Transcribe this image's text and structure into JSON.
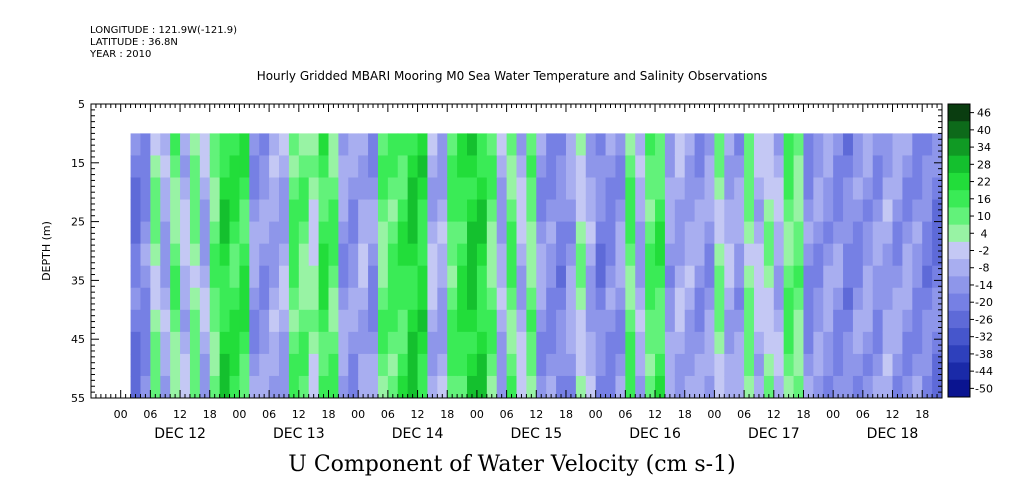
{
  "metadata": {
    "longitude": "LONGITUDE : 121.9W(-121.9)",
    "latitude": "LATITUDE : 36.8N",
    "year": "YEAR : 2010"
  },
  "chart_data": {
    "type": "heatmap",
    "title": "Hourly Gridded MBARI Mooring M0 Sea Water Temperature and Salinity Observations",
    "xlabel": "U Component of Water Velocity (cm s-1)",
    "ylabel": "DEPTH (m)",
    "y_ticks": [
      5,
      15,
      25,
      35,
      45,
      55
    ],
    "y_range": [
      55,
      5
    ],
    "x_hour_labels": [
      "00",
      "06",
      "12",
      "18"
    ],
    "x_day_labels": [
      "DEC 12",
      "DEC 13",
      "DEC 14",
      "DEC 15",
      "DEC 16",
      "DEC 17",
      "DEC 18"
    ],
    "data_depth_range": [
      10,
      55
    ],
    "data_time_start_hour": 2,
    "colorbar": {
      "labels": [
        "46",
        "40",
        "34",
        "28",
        "22",
        "16",
        "10",
        "4",
        "-2",
        "-8",
        "-14",
        "-20",
        "-26",
        "-32",
        "-38",
        "-44",
        "-50"
      ],
      "range": [
        -50,
        50
      ],
      "colors": [
        "#0a3d10",
        "#0d6a1a",
        "#109a24",
        "#14c02e",
        "#22dd3a",
        "#3aeb56",
        "#62f27a",
        "#98f3a4",
        "#c4c8f4",
        "#a8aef0",
        "#8e96ea",
        "#7680e4",
        "#5e6ad8",
        "#4656cc",
        "#2e40bc",
        "#1a2aa8",
        "#0a1490"
      ]
    },
    "u_velocity_by_time": [
      {
        "day": 12,
        "hours": [
          2,
          4,
          6,
          8,
          10,
          12,
          14,
          16,
          18,
          20,
          22
        ],
        "u": [
          -20,
          -14,
          6,
          -8,
          10,
          -4,
          8,
          -6,
          12,
          22,
          18
        ]
      },
      {
        "day": 13,
        "hours": [
          0,
          2,
          4,
          6,
          8,
          10,
          12,
          14,
          16,
          18,
          20,
          22
        ],
        "u": [
          20,
          -10,
          -12,
          -8,
          -6,
          14,
          10,
          4,
          18,
          12,
          -10,
          -12
        ]
      },
      {
        "day": 14,
        "hours": [
          0,
          2,
          4,
          6,
          8,
          10,
          12,
          14,
          16,
          18,
          20,
          22
        ],
        "u": [
          -6,
          -12,
          12,
          14,
          18,
          24,
          22,
          -4,
          -8,
          14,
          20,
          26
        ]
      },
      {
        "day": 15,
        "hours": [
          0,
          2,
          4,
          6,
          8,
          10,
          12,
          14,
          16,
          18,
          20,
          22
        ],
        "u": [
          24,
          10,
          -8,
          12,
          -6,
          10,
          -10,
          -14,
          -16,
          -10,
          6,
          -8
        ]
      },
      {
        "day": 16,
        "hours": [
          0,
          2,
          4,
          6,
          8,
          10,
          12,
          14,
          16,
          18,
          20,
          22
        ],
        "u": [
          -16,
          -14,
          -12,
          12,
          -8,
          14,
          16,
          -10,
          -6,
          -8,
          -10,
          -12
        ]
      },
      {
        "day": 17,
        "hours": [
          0,
          2,
          4,
          6,
          8,
          10,
          12,
          14,
          16,
          18,
          20,
          22
        ],
        "u": [
          8,
          -6,
          -10,
          8,
          -4,
          4,
          -6,
          12,
          10,
          -14,
          -12,
          -10
        ]
      },
      {
        "day": 18,
        "hours": [
          0,
          2,
          4,
          6,
          8,
          10,
          12,
          14,
          16,
          18,
          20,
          22
        ],
        "u": [
          -12,
          -16,
          -14,
          -10,
          -12,
          -8,
          -10,
          -12,
          -14,
          -16,
          -18,
          -20
        ]
      }
    ]
  }
}
